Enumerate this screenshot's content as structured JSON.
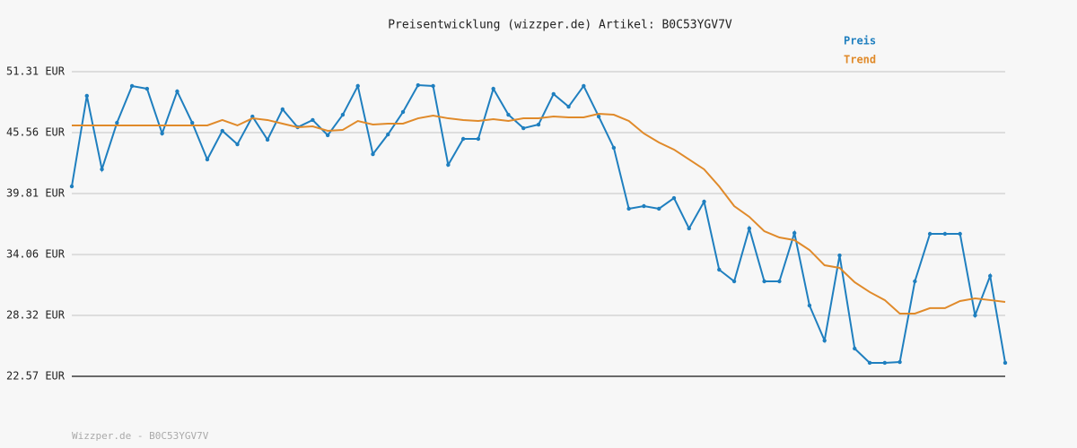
{
  "chart_data": {
    "type": "line",
    "title": "Preisentwicklung (wizzper.de) Artikel: B0C53YGV7V",
    "footer": "Wizzper.de - B0C53YGV7V",
    "categories": [
      null,
      null,
      null,
      null,
      null,
      null,
      null,
      null,
      null,
      null,
      null,
      null,
      null,
      null,
      null,
      null,
      null,
      null,
      null,
      null,
      null,
      null,
      null,
      null,
      null,
      null,
      null,
      null,
      null,
      null,
      null,
      null,
      null,
      null,
      null,
      null,
      null,
      null,
      null,
      null,
      null,
      null,
      null,
      null,
      null,
      null,
      null,
      null,
      null,
      null,
      null,
      null,
      null,
      null,
      null,
      null,
      null,
      null,
      null,
      null,
      null,
      null,
      null
    ],
    "series": [
      {
        "name": "Preis",
        "color": "#1f7fbf",
        "marker": true,
        "values": [
          40.49,
          49.03,
          42.1,
          46.49,
          49.96,
          49.7,
          45.48,
          49.45,
          46.49,
          43.03,
          45.73,
          44.46,
          47.08,
          44.89,
          47.76,
          46.07,
          46.75,
          45.31,
          47.25,
          49.96,
          43.53,
          45.39,
          47.51,
          50.04,
          49.96,
          42.52,
          44.97,
          44.97,
          49.7,
          47.25,
          45.98,
          46.32,
          49.2,
          48.01,
          49.96,
          47.08,
          44.13,
          38.38,
          38.63,
          38.38,
          39.39,
          36.52,
          39.05,
          32.63,
          31.53,
          36.52,
          31.53,
          31.53,
          36.09,
          29.25,
          25.95,
          33.98,
          25.19,
          23.84,
          23.84,
          23.92,
          31.53,
          36.01,
          36.01,
          36.01,
          28.32,
          32.04,
          23.84
        ]
      },
      {
        "name": "Trend",
        "color": "#e08a2a",
        "marker": false,
        "values": [
          46.24,
          46.24,
          46.24,
          46.24,
          46.24,
          46.24,
          46.24,
          46.24,
          46.24,
          46.24,
          46.75,
          46.24,
          46.91,
          46.75,
          46.41,
          46.07,
          46.15,
          45.73,
          45.82,
          46.66,
          46.32,
          46.41,
          46.41,
          46.91,
          47.17,
          46.91,
          46.75,
          46.66,
          46.83,
          46.66,
          46.91,
          46.91,
          47.08,
          47.0,
          47.0,
          47.34,
          47.25,
          46.66,
          45.48,
          44.63,
          43.96,
          43.03,
          42.1,
          40.49,
          38.63,
          37.62,
          36.26,
          35.67,
          35.42,
          34.49,
          33.05,
          32.8,
          31.45,
          30.52,
          29.76,
          28.49,
          28.49,
          29.0,
          29.0,
          29.67,
          29.92,
          29.76,
          29.59
        ]
      }
    ],
    "ylim": [
      22.57,
      51.31
    ],
    "yticks": [
      {
        "value": 22.57,
        "label": "22.57 EUR"
      },
      {
        "value": 28.32,
        "label": "28.32 EUR"
      },
      {
        "value": 34.06,
        "label": "34.06 EUR"
      },
      {
        "value": 39.81,
        "label": "39.81 EUR"
      },
      {
        "value": 45.56,
        "label": "45.56 EUR"
      },
      {
        "value": 51.31,
        "label": "51.31 EUR"
      }
    ],
    "grid": true,
    "legend": "top-right"
  }
}
